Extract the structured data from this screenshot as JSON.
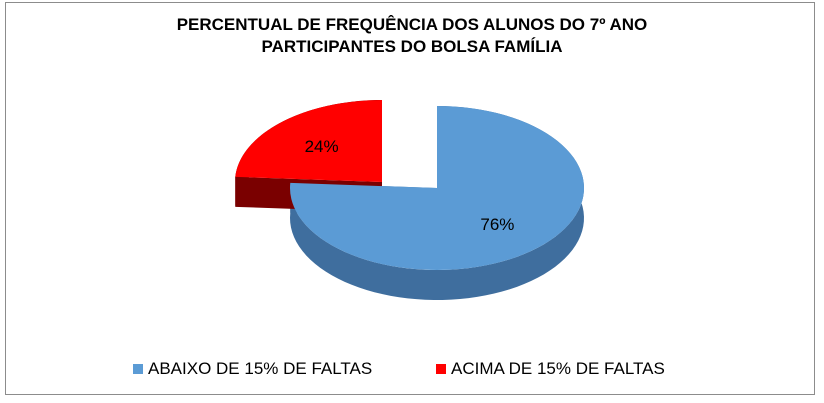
{
  "chart_data": {
    "type": "pie",
    "title_lines": [
      "PERCENTUAL DE FREQUÊNCIA DOS ALUNOS DO 7º ANO",
      "PARTICIPANTES DO BOLSA FAMÍLIA"
    ],
    "slices": [
      {
        "label": "ABAIXO DE 15% DE FALTAS",
        "value": 76,
        "data_label": "76%",
        "color": "#5B9BD5",
        "side_color": "#3F6E9E"
      },
      {
        "label": "ACIMA DE 15% DE FALTAS",
        "value": 24,
        "data_label": "24%",
        "color": "#FF0000",
        "side_color": "#7A0000"
      }
    ],
    "style": "3d-exploded",
    "legend_position": "bottom"
  }
}
